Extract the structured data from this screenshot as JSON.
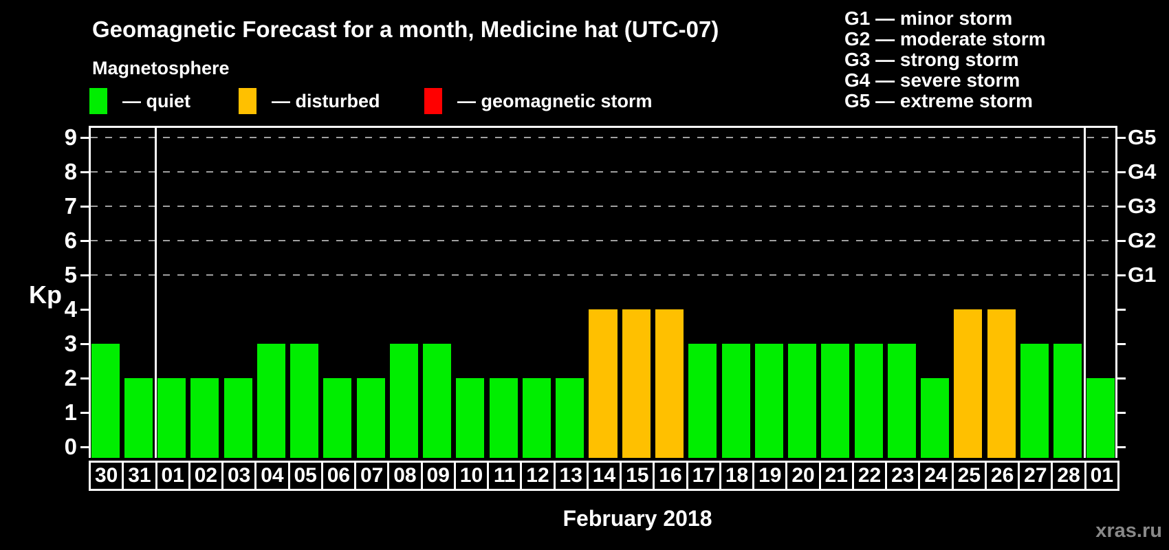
{
  "header": {
    "title": "Geomagnetic Forecast for a month, Medicine hat (UTC-07)",
    "subtitle": "Magnetosphere"
  },
  "legend": {
    "items": [
      {
        "label": "— quiet",
        "color": "#00ee00"
      },
      {
        "label": "— disturbed",
        "color": "#ffc000"
      },
      {
        "label": "— geomagnetic storm",
        "color": "#ff0000"
      }
    ]
  },
  "g_legend": {
    "items": [
      {
        "text": "G1 — minor storm"
      },
      {
        "text": "G2 — moderate storm"
      },
      {
        "text": "G3 — strong storm"
      },
      {
        "text": "G4 — severe storm"
      },
      {
        "text": "G5 — extreme storm"
      }
    ]
  },
  "watermark": "xras.ru",
  "chart_data": {
    "type": "bar",
    "title": "Geomagnetic Forecast for a month, Medicine hat (UTC-07)",
    "xlabel": "February 2018",
    "ylabel": "Kp",
    "ylim": [
      0,
      9
    ],
    "y_ticks": [
      0,
      1,
      2,
      3,
      4,
      5,
      6,
      7,
      8,
      9
    ],
    "gridlines_at": [
      5,
      6,
      7,
      8,
      9
    ],
    "grid_style": "dashed",
    "legend_position": "top",
    "categories": [
      "30",
      "31",
      "01",
      "02",
      "03",
      "04",
      "05",
      "06",
      "07",
      "08",
      "09",
      "10",
      "11",
      "12",
      "13",
      "14",
      "15",
      "16",
      "17",
      "18",
      "19",
      "20",
      "21",
      "22",
      "23",
      "24",
      "25",
      "26",
      "27",
      "28",
      "01"
    ],
    "values": [
      3,
      2,
      2,
      2,
      2,
      3,
      3,
      2,
      2,
      3,
      3,
      2,
      2,
      2,
      2,
      4,
      4,
      4,
      3,
      3,
      3,
      3,
      3,
      3,
      3,
      2,
      4,
      4,
      3,
      3,
      2
    ],
    "statuses": [
      "quiet",
      "quiet",
      "quiet",
      "quiet",
      "quiet",
      "quiet",
      "quiet",
      "quiet",
      "quiet",
      "quiet",
      "quiet",
      "quiet",
      "quiet",
      "quiet",
      "quiet",
      "disturbed",
      "disturbed",
      "disturbed",
      "quiet",
      "quiet",
      "quiet",
      "quiet",
      "quiet",
      "quiet",
      "quiet",
      "quiet",
      "disturbed",
      "disturbed",
      "quiet",
      "quiet",
      "quiet"
    ],
    "status_colors": {
      "quiet": "#00ee00",
      "disturbed": "#ffc000",
      "storm": "#ff0000"
    },
    "month_boundaries_at_index": [
      2,
      30
    ],
    "right_axis": {
      "labels": [
        {
          "kp": 5,
          "label": "G1"
        },
        {
          "kp": 6,
          "label": "G2"
        },
        {
          "kp": 7,
          "label": "G3"
        },
        {
          "kp": 8,
          "label": "G4"
        },
        {
          "kp": 9,
          "label": "G5"
        }
      ]
    }
  }
}
